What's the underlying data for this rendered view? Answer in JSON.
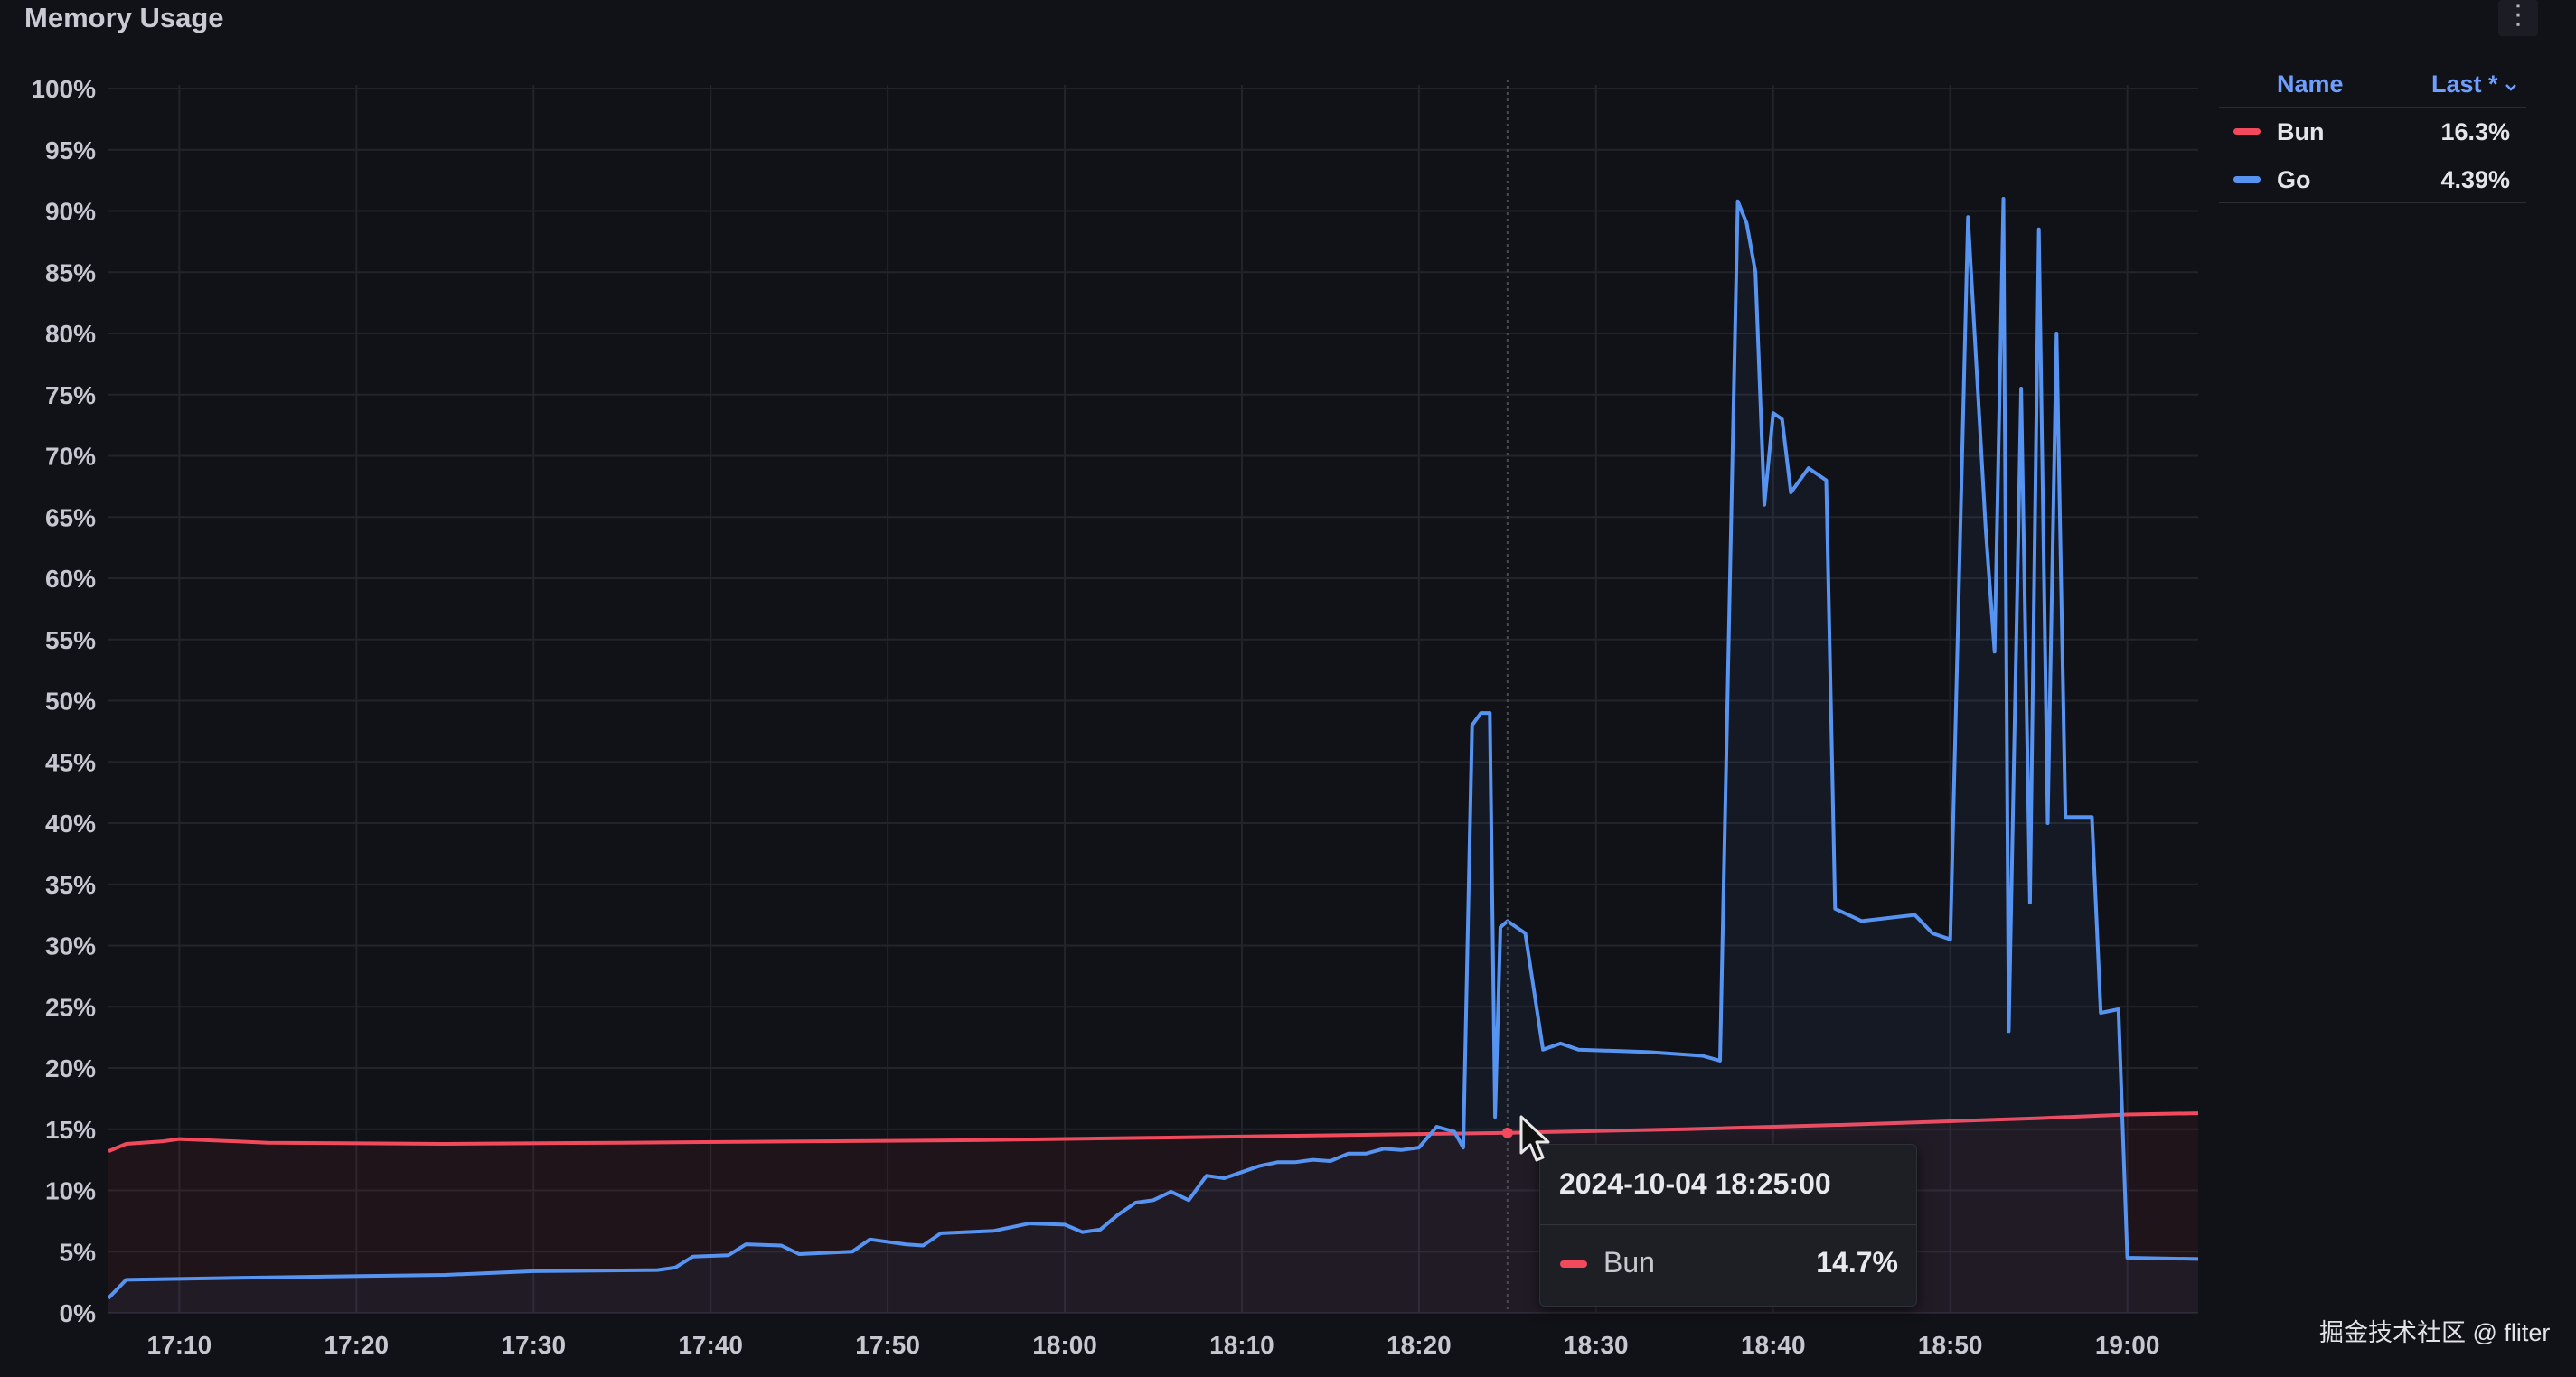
{
  "panel": {
    "title": "Memory Usage",
    "menu_icon": "vertical-ellipsis-icon"
  },
  "legend": {
    "name_header": "Name",
    "last_header": "Last *",
    "sort_icon": "chevron-down-icon",
    "items": [
      {
        "name": "Bun",
        "last": "16.3%",
        "color": "#f2495c"
      },
      {
        "name": "Go",
        "last": "4.39%",
        "color": "#5794f2"
      }
    ]
  },
  "tooltip": {
    "time": "2024-10-04 18:25:00",
    "series": "Bun",
    "value": "14.7%",
    "color": "#f2495c"
  },
  "watermark": "掘金技术社区 @ fliter",
  "chart_data": {
    "type": "line",
    "title": "Memory Usage",
    "xlabel": "",
    "ylabel": "",
    "x_ticks": [
      "17:10",
      "17:20",
      "17:30",
      "17:40",
      "17:50",
      "18:00",
      "18:10",
      "18:20",
      "18:30",
      "18:40",
      "18:50",
      "19:00"
    ],
    "y_ticks": [
      "0%",
      "5%",
      "10%",
      "15%",
      "20%",
      "25%",
      "30%",
      "35%",
      "40%",
      "45%",
      "50%",
      "55%",
      "60%",
      "65%",
      "70%",
      "75%",
      "80%",
      "85%",
      "90%",
      "95%",
      "100%"
    ],
    "xlim": [
      "17:06",
      "19:04"
    ],
    "ylim": [
      0,
      100
    ],
    "grid": true,
    "legend_position": "right",
    "hover_time": "18:25",
    "series": [
      {
        "name": "Bun",
        "color": "#f2495c",
        "points": [
          [
            "17:06",
            13.2
          ],
          [
            "17:07",
            13.8
          ],
          [
            "17:09",
            14.0
          ],
          [
            "17:10",
            14.2
          ],
          [
            "17:15",
            13.9
          ],
          [
            "17:25",
            13.8
          ],
          [
            "17:35",
            13.9
          ],
          [
            "17:45",
            14.0
          ],
          [
            "17:55",
            14.1
          ],
          [
            "18:05",
            14.3
          ],
          [
            "18:15",
            14.5
          ],
          [
            "18:25",
            14.7
          ],
          [
            "18:35",
            15.0
          ],
          [
            "18:45",
            15.4
          ],
          [
            "18:55",
            15.9
          ],
          [
            "19:00",
            16.2
          ],
          [
            "19:04",
            16.3
          ]
        ]
      },
      {
        "name": "Go",
        "color": "#5794f2",
        "points": [
          [
            "17:06",
            1.2
          ],
          [
            "17:07",
            2.7
          ],
          [
            "17:15",
            2.9
          ],
          [
            "17:25",
            3.1
          ],
          [
            "17:30",
            3.4
          ],
          [
            "17:37",
            3.5
          ],
          [
            "17:38",
            3.7
          ],
          [
            "17:39",
            4.6
          ],
          [
            "17:41",
            4.7
          ],
          [
            "17:42",
            5.6
          ],
          [
            "17:44",
            5.5
          ],
          [
            "17:45",
            4.8
          ],
          [
            "17:48",
            5.0
          ],
          [
            "17:49",
            6.0
          ],
          [
            "17:51",
            5.6
          ],
          [
            "17:52",
            5.5
          ],
          [
            "17:53",
            6.5
          ],
          [
            "17:56",
            6.7
          ],
          [
            "17:58",
            7.3
          ],
          [
            "18:00",
            7.2
          ],
          [
            "18:01",
            6.6
          ],
          [
            "18:02",
            6.8
          ],
          [
            "18:03",
            8.0
          ],
          [
            "18:04",
            9.0
          ],
          [
            "18:05",
            9.2
          ],
          [
            "18:06",
            9.9
          ],
          [
            "18:07",
            9.2
          ],
          [
            "18:08",
            11.2
          ],
          [
            "18:09",
            11.0
          ],
          [
            "18:10",
            11.5
          ],
          [
            "18:11",
            12.0
          ],
          [
            "18:12",
            12.3
          ],
          [
            "18:13",
            12.3
          ],
          [
            "18:14",
            12.5
          ],
          [
            "18:15",
            12.4
          ],
          [
            "18:16",
            13.0
          ],
          [
            "18:17",
            13.0
          ],
          [
            "18:18",
            13.4
          ],
          [
            "18:19",
            13.3
          ],
          [
            "18:20",
            13.5
          ],
          [
            "18:21",
            15.2
          ],
          [
            "18:22",
            14.8
          ],
          [
            "18:22.5",
            13.5
          ],
          [
            "18:23",
            48.0
          ],
          [
            "18:23.5",
            49.0
          ],
          [
            "18:24",
            49.0
          ],
          [
            "18:24.3",
            16.0
          ],
          [
            "18:24.6",
            31.5
          ],
          [
            "18:25",
            32.0
          ],
          [
            "18:26",
            31.0
          ],
          [
            "18:27",
            21.5
          ],
          [
            "18:28",
            22.0
          ],
          [
            "18:29",
            21.5
          ],
          [
            "18:33",
            21.3
          ],
          [
            "18:36",
            21.0
          ],
          [
            "18:37",
            20.6
          ],
          [
            "18:38",
            90.8
          ],
          [
            "18:38.5",
            89.0
          ],
          [
            "18:39",
            85.0
          ],
          [
            "18:39.5",
            66.0
          ],
          [
            "18:40",
            73.5
          ],
          [
            "18:40.5",
            73.0
          ],
          [
            "18:41",
            67.0
          ],
          [
            "18:42",
            69.0
          ],
          [
            "18:43",
            68.0
          ],
          [
            "18:43.5",
            33.0
          ],
          [
            "18:45",
            32.0
          ],
          [
            "18:48",
            32.5
          ],
          [
            "18:49",
            31.0
          ],
          [
            "18:50",
            30.5
          ],
          [
            "18:51",
            89.5
          ],
          [
            "18:52",
            64.0
          ],
          [
            "18:52.5",
            54.0
          ],
          [
            "18:53",
            91.0
          ],
          [
            "18:53.3",
            23.0
          ],
          [
            "18:54",
            75.5
          ],
          [
            "18:54.5",
            33.5
          ],
          [
            "18:55",
            88.5
          ],
          [
            "18:55.5",
            40.0
          ],
          [
            "18:56",
            80.0
          ],
          [
            "18:56.5",
            40.5
          ],
          [
            "18:58",
            40.5
          ],
          [
            "18:58.5",
            24.5
          ],
          [
            "18:59.5",
            24.8
          ],
          [
            "18:60",
            4.5
          ],
          [
            "19:04",
            4.4
          ]
        ]
      }
    ]
  }
}
